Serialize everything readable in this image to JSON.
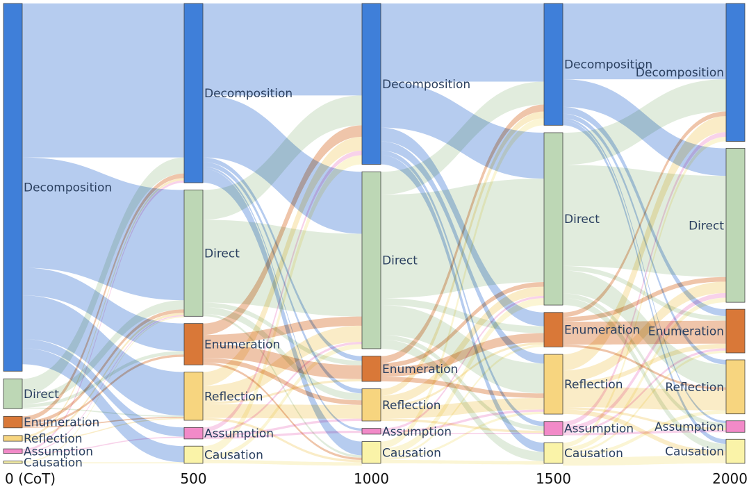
{
  "colors": {
    "Decomposition": {
      "node": "#3f7fd9",
      "link": "#9dbbea"
    },
    "Direct": {
      "node": "#bdd7b5",
      "link": "#d7e6d2"
    },
    "Enumeration": {
      "node": "#d97838",
      "link": "#e9b18e"
    },
    "Reflection": {
      "node": "#f7d57f",
      "link": "#f8e6b4"
    },
    "Assumption": {
      "node": "#f28ac8",
      "link": "#f6c3e3"
    },
    "Causation": {
      "node": "#faf3a8",
      "link": "#f9f2c6"
    }
  },
  "stages": [
    {
      "label": "0 (CoT)"
    },
    {
      "label": "500"
    },
    {
      "label": "1000"
    },
    {
      "label": "1500"
    },
    {
      "label": "2000"
    }
  ],
  "nodes": [
    {
      "stage": 0,
      "category": "Decomposition",
      "label": "Decomposition",
      "value": 160
    },
    {
      "stage": 0,
      "category": "Direct",
      "label": "Direct",
      "value": 13
    },
    {
      "stage": 0,
      "category": "Enumeration",
      "label": "Enumeration",
      "value": 5
    },
    {
      "stage": 0,
      "category": "Reflection",
      "label": "Reflection",
      "value": 2.5
    },
    {
      "stage": 0,
      "category": "Assumption",
      "label": "Assumption",
      "value": 2
    },
    {
      "stage": 0,
      "category": "Causation",
      "label": "Causation",
      "value": 1
    },
    {
      "stage": 1,
      "category": "Decomposition",
      "label": "Decomposition",
      "value": 78
    },
    {
      "stage": 1,
      "category": "Direct",
      "label": "Direct",
      "value": 55
    },
    {
      "stage": 1,
      "category": "Enumeration",
      "label": "Enumeration",
      "value": 18
    },
    {
      "stage": 1,
      "category": "Reflection",
      "label": "Reflection",
      "value": 21
    },
    {
      "stage": 1,
      "category": "Assumption",
      "label": "Assumption",
      "value": 5
    },
    {
      "stage": 1,
      "category": "Causation",
      "label": "Causation",
      "value": 7.5
    },
    {
      "stage": 2,
      "category": "Decomposition",
      "label": "Decomposition",
      "value": 70
    },
    {
      "stage": 2,
      "category": "Direct",
      "label": "Direct",
      "value": 77
    },
    {
      "stage": 2,
      "category": "Enumeration",
      "label": "Enumeration",
      "value": 11
    },
    {
      "stage": 2,
      "category": "Reflection",
      "label": "Reflection",
      "value": 14
    },
    {
      "stage": 2,
      "category": "Assumption",
      "label": "Assumption",
      "value": 2.5
    },
    {
      "stage": 2,
      "category": "Causation",
      "label": "Causation",
      "value": 9.5
    },
    {
      "stage": 3,
      "category": "Decomposition",
      "label": "Decomposition",
      "value": 53
    },
    {
      "stage": 3,
      "category": "Direct",
      "label": "Direct",
      "value": 75
    },
    {
      "stage": 3,
      "category": "Enumeration",
      "label": "Enumeration",
      "value": 15
    },
    {
      "stage": 3,
      "category": "Reflection",
      "label": "Reflection",
      "value": 26
    },
    {
      "stage": 3,
      "category": "Assumption",
      "label": "Assumption",
      "value": 6
    },
    {
      "stage": 3,
      "category": "Causation",
      "label": "Causation",
      "value": 9
    },
    {
      "stage": 4,
      "category": "Decomposition",
      "label": "Decomposition",
      "value": 60
    },
    {
      "stage": 4,
      "category": "Direct",
      "label": "Direct",
      "value": 67
    },
    {
      "stage": 4,
      "category": "Enumeration",
      "label": "Enumeration",
      "value": 19
    },
    {
      "stage": 4,
      "category": "Reflection",
      "label": "Reflection",
      "value": 23.5
    },
    {
      "stage": 4,
      "category": "Assumption",
      "label": "Assumption",
      "value": 5
    },
    {
      "stage": 4,
      "category": "Causation",
      "label": "Causation",
      "value": 10.5
    }
  ],
  "links": [
    {
      "stage": 0,
      "from": "Decomposition",
      "to": "Decomposition",
      "value": 67
    },
    {
      "stage": 0,
      "from": "Decomposition",
      "to": "Direct",
      "value": 48
    },
    {
      "stage": 0,
      "from": "Decomposition",
      "to": "Enumeration",
      "value": 12
    },
    {
      "stage": 0,
      "from": "Decomposition",
      "to": "Reflection",
      "value": 19
    },
    {
      "stage": 0,
      "from": "Decomposition",
      "to": "Assumption",
      "value": 4
    },
    {
      "stage": 0,
      "from": "Decomposition",
      "to": "Causation",
      "value": 7
    },
    {
      "stage": 0,
      "from": "Direct",
      "to": "Decomposition",
      "value": 7
    },
    {
      "stage": 0,
      "from": "Direct",
      "to": "Direct",
      "value": 4
    },
    {
      "stage": 0,
      "from": "Direct",
      "to": "Enumeration",
      "value": 1.5
    },
    {
      "stage": 0,
      "from": "Direct",
      "to": "Reflection",
      "value": 0.5
    },
    {
      "stage": 0,
      "from": "Enumeration",
      "to": "Decomposition",
      "value": 2
    },
    {
      "stage": 0,
      "from": "Enumeration",
      "to": "Direct",
      "value": 1.5
    },
    {
      "stage": 0,
      "from": "Enumeration",
      "to": "Enumeration",
      "value": 1
    },
    {
      "stage": 0,
      "from": "Enumeration",
      "to": "Reflection",
      "value": 0.5
    },
    {
      "stage": 0,
      "from": "Reflection",
      "to": "Decomposition",
      "value": 1
    },
    {
      "stage": 0,
      "from": "Reflection",
      "to": "Direct",
      "value": 1
    },
    {
      "stage": 0,
      "from": "Reflection",
      "to": "Reflection",
      "value": 0.5
    },
    {
      "stage": 0,
      "from": "Assumption",
      "to": "Decomposition",
      "value": 1
    },
    {
      "stage": 0,
      "from": "Assumption",
      "to": "Direct",
      "value": 0.5
    },
    {
      "stage": 0,
      "from": "Assumption",
      "to": "Assumption",
      "value": 0.5
    },
    {
      "stage": 0,
      "from": "Causation",
      "to": "Direct",
      "value": 0.5
    },
    {
      "stage": 0,
      "from": "Causation",
      "to": "Causation",
      "value": 0.5
    },
    {
      "stage": 1,
      "from": "Decomposition",
      "to": "Decomposition",
      "value": 40
    },
    {
      "stage": 1,
      "from": "Decomposition",
      "to": "Direct",
      "value": 27
    },
    {
      "stage": 1,
      "from": "Decomposition",
      "to": "Enumeration",
      "value": 2
    },
    {
      "stage": 1,
      "from": "Decomposition",
      "to": "Reflection",
      "value": 2
    },
    {
      "stage": 1,
      "from": "Decomposition",
      "to": "Assumption",
      "value": 1
    },
    {
      "stage": 1,
      "from": "Decomposition",
      "to": "Causation",
      "value": 6
    },
    {
      "stage": 1,
      "from": "Direct",
      "to": "Decomposition",
      "value": 13
    },
    {
      "stage": 1,
      "from": "Direct",
      "to": "Direct",
      "value": 36
    },
    {
      "stage": 1,
      "from": "Direct",
      "to": "Enumeration",
      "value": 2
    },
    {
      "stage": 1,
      "from": "Direct",
      "to": "Reflection",
      "value": 3
    },
    {
      "stage": 1,
      "from": "Direct",
      "to": "Causation",
      "value": 1
    },
    {
      "stage": 1,
      "from": "Enumeration",
      "to": "Decomposition",
      "value": 5
    },
    {
      "stage": 1,
      "from": "Enumeration",
      "to": "Direct",
      "value": 4
    },
    {
      "stage": 1,
      "from": "Enumeration",
      "to": "Enumeration",
      "value": 6
    },
    {
      "stage": 1,
      "from": "Enumeration",
      "to": "Reflection",
      "value": 2
    },
    {
      "stage": 1,
      "from": "Enumeration",
      "to": "Causation",
      "value": 1
    },
    {
      "stage": 1,
      "from": "Reflection",
      "to": "Decomposition",
      "value": 6
    },
    {
      "stage": 1,
      "from": "Reflection",
      "to": "Direct",
      "value": 7
    },
    {
      "stage": 1,
      "from": "Reflection",
      "to": "Enumeration",
      "value": 1
    },
    {
      "stage": 1,
      "from": "Reflection",
      "to": "Reflection",
      "value": 6
    },
    {
      "stage": 1,
      "from": "Reflection",
      "to": "Causation",
      "value": 1
    },
    {
      "stage": 1,
      "from": "Assumption",
      "to": "Decomposition",
      "value": 2
    },
    {
      "stage": 1,
      "from": "Assumption",
      "to": "Direct",
      "value": 1
    },
    {
      "stage": 1,
      "from": "Assumption",
      "to": "Reflection",
      "value": 1
    },
    {
      "stage": 1,
      "from": "Assumption",
      "to": "Assumption",
      "value": 1
    },
    {
      "stage": 1,
      "from": "Causation",
      "to": "Decomposition",
      "value": 4
    },
    {
      "stage": 1,
      "from": "Causation",
      "to": "Direct",
      "value": 2
    },
    {
      "stage": 1,
      "from": "Causation",
      "to": "Causation",
      "value": 1.5
    },
    {
      "stage": 2,
      "from": "Decomposition",
      "to": "Decomposition",
      "value": 34
    },
    {
      "stage": 2,
      "from": "Decomposition",
      "to": "Direct",
      "value": 20
    },
    {
      "stage": 2,
      "from": "Decomposition",
      "to": "Enumeration",
      "value": 6
    },
    {
      "stage": 2,
      "from": "Decomposition",
      "to": "Reflection",
      "value": 4
    },
    {
      "stage": 2,
      "from": "Decomposition",
      "to": "Assumption",
      "value": 2
    },
    {
      "stage": 2,
      "from": "Decomposition",
      "to": "Causation",
      "value": 4
    },
    {
      "stage": 2,
      "from": "Direct",
      "to": "Decomposition",
      "value": 10
    },
    {
      "stage": 2,
      "from": "Direct",
      "to": "Direct",
      "value": 45
    },
    {
      "stage": 2,
      "from": "Direct",
      "to": "Enumeration",
      "value": 3
    },
    {
      "stage": 2,
      "from": "Direct",
      "to": "Reflection",
      "value": 13
    },
    {
      "stage": 2,
      "from": "Direct",
      "to": "Assumption",
      "value": 2
    },
    {
      "stage": 2,
      "from": "Direct",
      "to": "Causation",
      "value": 4
    },
    {
      "stage": 2,
      "from": "Enumeration",
      "to": "Decomposition",
      "value": 3
    },
    {
      "stage": 2,
      "from": "Enumeration",
      "to": "Direct",
      "value": 2
    },
    {
      "stage": 2,
      "from": "Enumeration",
      "to": "Enumeration",
      "value": 4
    },
    {
      "stage": 2,
      "from": "Enumeration",
      "to": "Reflection",
      "value": 2
    },
    {
      "stage": 2,
      "from": "Reflection",
      "to": "Decomposition",
      "value": 3
    },
    {
      "stage": 2,
      "from": "Reflection",
      "to": "Direct",
      "value": 4
    },
    {
      "stage": 2,
      "from": "Reflection",
      "to": "Enumeration",
      "value": 1
    },
    {
      "stage": 2,
      "from": "Reflection",
      "to": "Reflection",
      "value": 5
    },
    {
      "stage": 2,
      "from": "Reflection",
      "to": "Assumption",
      "value": 1
    },
    {
      "stage": 2,
      "from": "Assumption",
      "to": "Direct",
      "value": 1
    },
    {
      "stage": 2,
      "from": "Assumption",
      "to": "Reflection",
      "value": 1
    },
    {
      "stage": 2,
      "from": "Assumption",
      "to": "Assumption",
      "value": 0.5
    },
    {
      "stage": 2,
      "from": "Causation",
      "to": "Decomposition",
      "value": 3
    },
    {
      "stage": 2,
      "from": "Causation",
      "to": "Direct",
      "value": 3
    },
    {
      "stage": 2,
      "from": "Causation",
      "to": "Enumeration",
      "value": 1
    },
    {
      "stage": 2,
      "from": "Causation",
      "to": "Reflection",
      "value": 1
    },
    {
      "stage": 2,
      "from": "Causation",
      "to": "Causation",
      "value": 1.5
    },
    {
      "stage": 3,
      "from": "Decomposition",
      "to": "Decomposition",
      "value": 33
    },
    {
      "stage": 3,
      "from": "Decomposition",
      "to": "Direct",
      "value": 12
    },
    {
      "stage": 3,
      "from": "Decomposition",
      "to": "Enumeration",
      "value": 3
    },
    {
      "stage": 3,
      "from": "Decomposition",
      "to": "Reflection",
      "value": 2
    },
    {
      "stage": 3,
      "from": "Decomposition",
      "to": "Assumption",
      "value": 1
    },
    {
      "stage": 3,
      "from": "Decomposition",
      "to": "Causation",
      "value": 2
    },
    {
      "stage": 3,
      "from": "Direct",
      "to": "Decomposition",
      "value": 14
    },
    {
      "stage": 3,
      "from": "Direct",
      "to": "Direct",
      "value": 44
    },
    {
      "stage": 3,
      "from": "Direct",
      "to": "Enumeration",
      "value": 2
    },
    {
      "stage": 3,
      "from": "Direct",
      "to": "Reflection",
      "value": 10
    },
    {
      "stage": 3,
      "from": "Direct",
      "to": "Assumption",
      "value": 2
    },
    {
      "stage": 3,
      "from": "Direct",
      "to": "Causation",
      "value": 3
    },
    {
      "stage": 3,
      "from": "Enumeration",
      "to": "Decomposition",
      "value": 2
    },
    {
      "stage": 3,
      "from": "Enumeration",
      "to": "Direct",
      "value": 2
    },
    {
      "stage": 3,
      "from": "Enumeration",
      "to": "Enumeration",
      "value": 10
    },
    {
      "stage": 3,
      "from": "Enumeration",
      "to": "Reflection",
      "value": 1
    },
    {
      "stage": 3,
      "from": "Reflection",
      "to": "Decomposition",
      "value": 7
    },
    {
      "stage": 3,
      "from": "Reflection",
      "to": "Direct",
      "value": 5
    },
    {
      "stage": 3,
      "from": "Reflection",
      "to": "Enumeration",
      "value": 2
    },
    {
      "stage": 3,
      "from": "Reflection",
      "to": "Reflection",
      "value": 9
    },
    {
      "stage": 3,
      "from": "Reflection",
      "to": "Assumption",
      "value": 1
    },
    {
      "stage": 3,
      "from": "Reflection",
      "to": "Causation",
      "value": 2
    },
    {
      "stage": 3,
      "from": "Assumption",
      "to": "Decomposition",
      "value": 2
    },
    {
      "stage": 3,
      "from": "Assumption",
      "to": "Direct",
      "value": 2
    },
    {
      "stage": 3,
      "from": "Assumption",
      "to": "Enumeration",
      "value": 1
    },
    {
      "stage": 3,
      "from": "Assumption",
      "to": "Assumption",
      "value": 1
    },
    {
      "stage": 3,
      "from": "Causation",
      "to": "Decomposition",
      "value": 2
    },
    {
      "stage": 3,
      "from": "Causation",
      "to": "Direct",
      "value": 2
    },
    {
      "stage": 3,
      "from": "Causation",
      "to": "Enumeration",
      "value": 1
    },
    {
      "stage": 3,
      "from": "Causation",
      "to": "Reflection",
      "value": 1.5
    },
    {
      "stage": 3,
      "from": "Causation",
      "to": "Causation",
      "value": 3.5
    }
  ]
}
